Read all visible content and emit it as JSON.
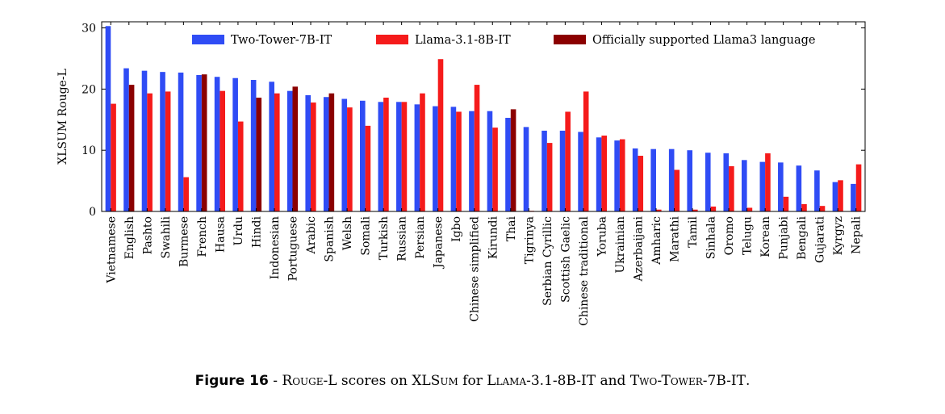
{
  "chart_data": {
    "type": "bar",
    "ylabel": "XLSUM Rouge-L",
    "ylim": [
      0,
      31
    ],
    "yticks": [
      0,
      10,
      20,
      30
    ],
    "legend_position": "top-right",
    "grid": false,
    "categories": [
      "Vietnamese",
      "English",
      "Pashto",
      "Swahili",
      "Burmese",
      "French",
      "Hausa",
      "Urdu",
      "Hindi",
      "Indonesian",
      "Portuguese",
      "Arabic",
      "Spanish",
      "Welsh",
      "Somali",
      "Turkish",
      "Russian",
      "Persian",
      "Japanese",
      "Igbo",
      "Chinese simplified",
      "Kirundi",
      "Thai",
      "Tigrinya",
      "Serbian Cyrillic",
      "Scottish Gaelic",
      "Chinese traditional",
      "Yoruba",
      "Ukrainian",
      "Azerbaijani",
      "Amharic",
      "Marathi",
      "Tamil",
      "Sinhala",
      "Oromo",
      "Telugu",
      "Korean",
      "Punjabi",
      "Bengali",
      "Gujarati",
      "Kyrgyz",
      "Nepali"
    ],
    "series": [
      {
        "name": "Two-Tower-7B-IT",
        "color": "#2f4cf5",
        "values": [
          30.3,
          23.4,
          23.0,
          22.8,
          22.7,
          22.3,
          22.0,
          21.8,
          21.5,
          21.2,
          19.7,
          19.0,
          18.7,
          18.4,
          18.1,
          17.9,
          17.9,
          17.5,
          17.2,
          17.1,
          16.4,
          16.4,
          15.3,
          13.8,
          13.2,
          13.2,
          13.0,
          12.1,
          11.6,
          10.3,
          10.2,
          10.2,
          10.0,
          9.6,
          9.5,
          8.4,
          8.1,
          8.0,
          7.5,
          6.7,
          4.8,
          4.5
        ]
      },
      {
        "name": "Llama-3.1-8B-IT",
        "color": "#f51b1b",
        "values": [
          17.6,
          20.7,
          19.3,
          19.6,
          5.6,
          22.4,
          19.7,
          14.7,
          18.6,
          19.3,
          20.4,
          17.8,
          19.3,
          17.0,
          14.0,
          18.6,
          17.9,
          19.3,
          24.9,
          16.3,
          20.7,
          13.7,
          16.7,
          0.1,
          11.2,
          16.3,
          19.6,
          12.4,
          11.8,
          9.1,
          0.3,
          6.8,
          0.3,
          0.8,
          7.4,
          0.6,
          9.5,
          2.4,
          1.2,
          0.9,
          5.1,
          7.7
        ]
      }
    ],
    "legend": [
      {
        "label": "Two-Tower-7B-IT",
        "color": "#2f4cf5"
      },
      {
        "label": "Llama-3.1-8B-IT",
        "color": "#f51b1b"
      },
      {
        "label": "Officially supported Llama3 language",
        "color": "#8b0000"
      }
    ],
    "officially_supported_color": "#8b0000",
    "officially_supported": [
      "English",
      "French",
      "Hindi",
      "Portuguese",
      "Spanish",
      "Thai"
    ]
  },
  "caption": {
    "label": "Figure 16",
    "prefix": " - ",
    "parts": [
      "Rouge-L",
      " scores on XL",
      "Sum",
      " for ",
      "Llama-3.1-8B-IT",
      " and ",
      "Two-Tower-7B-IT",
      "."
    ]
  }
}
